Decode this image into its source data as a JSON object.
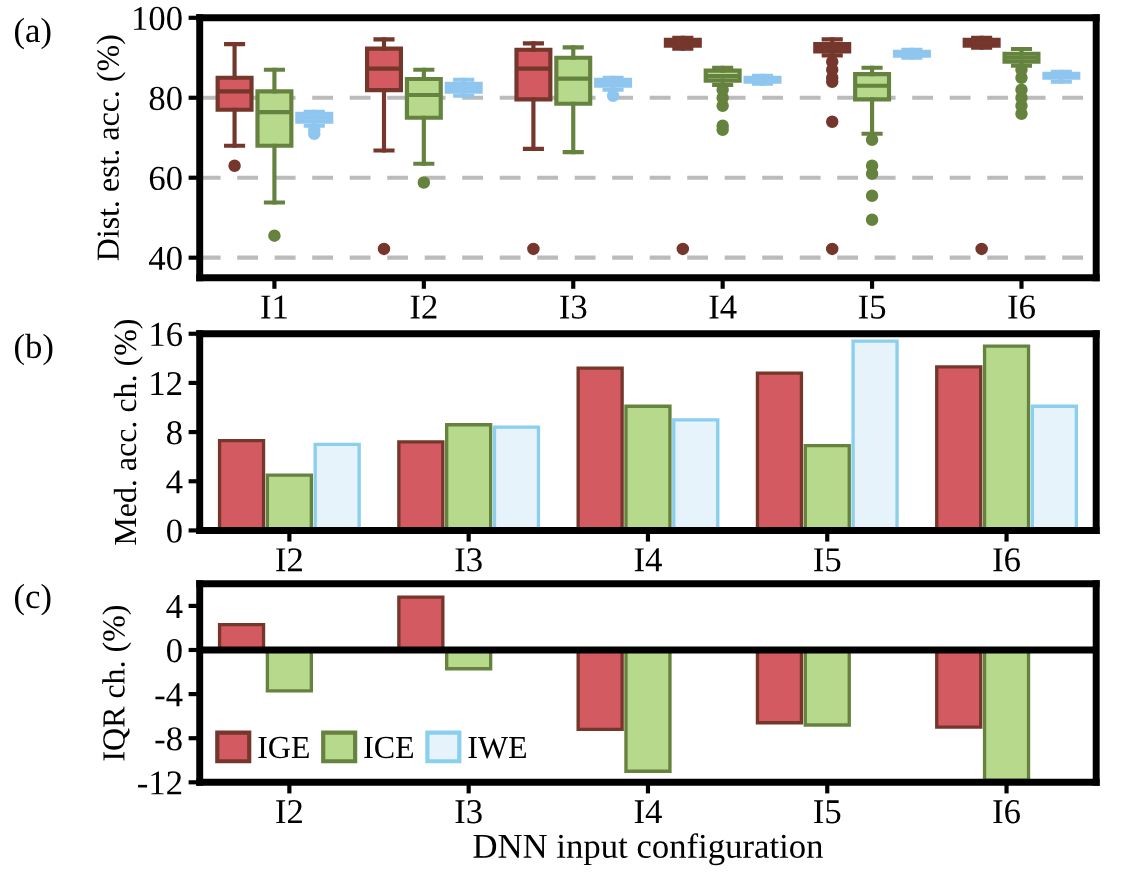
{
  "chart_data": [
    {
      "type": "box",
      "ylabel": "Dist. est. acc. (%)",
      "annotations": [
        "(a)"
      ],
      "categories": [
        "I1",
        "I2",
        "I3",
        "I4",
        "I5",
        "I6"
      ],
      "ylim": [
        35,
        100
      ],
      "yticks": [
        40,
        60,
        80,
        100
      ],
      "grid": "y",
      "line_style": "dashed",
      "series": [
        {
          "color": "#d45a61",
          "boxes": [
            {
              "low": 68,
              "q1": 77,
              "median": 81.6,
              "q3": 85,
              "high": 93.4,
              "outliers": [
                63
              ]
            },
            {
              "low": 66.8,
              "q1": 81.9,
              "median": 87.3,
              "q3": 92.3,
              "high": 94.6,
              "outliers": [
                42.2
              ]
            },
            {
              "low": 67.2,
              "q1": 79.6,
              "median": 87.3,
              "q3": 92,
              "high": 93.6,
              "outliers": [
                42.2
              ]
            },
            {
              "low": 92.3,
              "q1": 93,
              "median": 93.7,
              "q3": 94.5,
              "high": 95,
              "outliers": [
                42.2
              ]
            },
            {
              "low": 90.6,
              "q1": 91.6,
              "median": 92.5,
              "q3": 93.4,
              "high": 94.6,
              "outliers": [
                89,
                87,
                85,
                84,
                74,
                42.2
              ]
            },
            {
              "low": 92.5,
              "q1": 93,
              "median": 93.8,
              "q3": 94.5,
              "high": 95,
              "outliers": [
                42.2
              ]
            }
          ]
        },
        {
          "color": "#b7d98b",
          "boxes": [
            {
              "low": 53.8,
              "q1": 68,
              "median": 76.4,
              "q3": 81.6,
              "high": 87,
              "outliers": [
                45.5
              ]
            },
            {
              "low": 63.5,
              "q1": 75,
              "median": 80.7,
              "q3": 84.7,
              "high": 87,
              "outliers": [
                58.8
              ]
            },
            {
              "low": 66.4,
              "q1": 78.5,
              "median": 84.8,
              "q3": 90,
              "high": 92.6
            },
            {
              "low": 83.2,
              "q1": 84.3,
              "median": 85.4,
              "q3": 86.8,
              "high": 87.5,
              "outliers": [
                82,
                80,
                78,
                73,
                72
              ]
            },
            {
              "low": 71,
              "q1": 79.6,
              "median": 83,
              "q3": 85.9,
              "high": 87.5,
              "outliers": [
                69.5,
                63,
                61,
                55.5,
                49.5
              ]
            },
            {
              "low": 88,
              "q1": 89,
              "median": 90,
              "q3": 91,
              "high": 92.2,
              "outliers": [
                87,
                85,
                82,
                80,
                78,
                76
              ]
            }
          ]
        },
        {
          "color": "#9fd0ef",
          "boxes": [
            {
              "low": 73,
              "q1": 74,
              "median": 75,
              "q3": 76,
              "high": 76.5,
              "outliers": [
                72,
                71
              ]
            },
            {
              "low": 80.5,
              "q1": 81.5,
              "median": 82.5,
              "q3": 83.5,
              "high": 84.5
            },
            {
              "low": 82,
              "q1": 83,
              "median": 83.7,
              "q3": 84.5,
              "high": 85,
              "outliers": [
                80.5
              ]
            },
            {
              "low": 83.5,
              "q1": 84,
              "median": 84.5,
              "q3": 85,
              "high": 85.5
            },
            {
              "low": 90,
              "q1": 90.5,
              "median": 91,
              "q3": 91.5,
              "high": 92
            },
            {
              "low": 84,
              "q1": 85,
              "median": 85.5,
              "q3": 86,
              "high": 86.5
            }
          ]
        }
      ]
    },
    {
      "type": "bar",
      "ylabel": "Med. acc. ch. (%)",
      "annotations": [
        "(b)"
      ],
      "categories": [
        "I2",
        "I3",
        "I4",
        "I5",
        "I6"
      ],
      "ylim": [
        0,
        16
      ],
      "yticks": [
        0,
        4,
        8,
        12,
        16
      ],
      "series": [
        {
          "color": "#d45a61",
          "values": [
            7.3,
            7.2,
            13.2,
            12.8,
            13.3
          ]
        },
        {
          "color": "#b7d98b",
          "values": [
            4.5,
            8.6,
            10.1,
            6.9,
            15.0
          ]
        },
        {
          "color": "#e6f3fb",
          "values": [
            7.0,
            8.4,
            9.0,
            15.4,
            10.1
          ]
        }
      ]
    },
    {
      "type": "bar",
      "ylabel": "IQR ch. (%)",
      "xlabel": "DNN input configuration",
      "annotations": [
        "(c)"
      ],
      "categories": [
        "I2",
        "I3",
        "I4",
        "I5",
        "I6"
      ],
      "ylim": [
        -12,
        6
      ],
      "yticks": [
        {
          "value": -12,
          "label": "-12"
        },
        {
          "value": -8,
          "label": "-8"
        },
        {
          "value": -4,
          "label": "-4"
        },
        0,
        4
      ],
      "legend": "bottom left",
      "ref_lines": [
        {
          "axis": "y",
          "value": 0,
          "color": "#000000"
        }
      ],
      "series": [
        {
          "name": "IGE",
          "color": "#d45a61",
          "values": [
            2.3,
            4.8,
            -7.2,
            -6.6,
            -7.0
          ]
        },
        {
          "name": "ICE",
          "color": "#b7d98b",
          "values": [
            -3.7,
            -1.7,
            -11.0,
            -6.8,
            -11.8
          ]
        },
        {
          "name": "IWE",
          "color": "#e6f3fb",
          "values": [
            null,
            null,
            null,
            null,
            null
          ]
        }
      ]
    }
  ]
}
